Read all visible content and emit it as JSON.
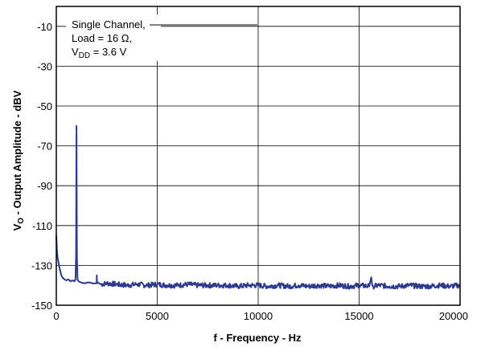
{
  "chart_data": {
    "type": "line",
    "title": "",
    "xlabel": "f - Frequency - Hz",
    "ylabel": {
      "prefix": "V",
      "sub": "O",
      "rest": " - Output Amplitude - dBV"
    },
    "xlim": [
      0,
      20000
    ],
    "ylim": [
      -150,
      0
    ],
    "x_ticks": [
      0,
      5000,
      10000,
      15000,
      20000
    ],
    "y_ticks": [
      -10,
      -30,
      -50,
      -70,
      -90,
      -110,
      -130,
      -150
    ],
    "grid": true,
    "legend": "none",
    "annotation": {
      "line1": "Single Channel,",
      "line2": "Load = 16 Ω,",
      "line3_main": "V",
      "line3_sub": "DD",
      "line3_rest": " = 3.6 V"
    },
    "series": [
      {
        "color": "#2e3a8c",
        "x": [
          0,
          30,
          60,
          100,
          150,
          200,
          250,
          300,
          400,
          500,
          600,
          700,
          800,
          900,
          950,
          980,
          1000,
          1020,
          1050,
          1100,
          1200,
          1400,
          1600,
          1800,
          2000,
          2005,
          2010,
          2050,
          2200,
          2500,
          3000,
          3500,
          4000,
          4500,
          5000,
          5500,
          6000,
          6500,
          7000,
          7500,
          8000,
          8500,
          9000,
          9500,
          10000,
          10500,
          11000,
          11500,
          12000,
          12500,
          13000,
          13500,
          14000,
          14500,
          15000,
          15500,
          15600,
          15650,
          15700,
          16000,
          16500,
          17000,
          17500,
          18000,
          18500,
          19000,
          19500,
          20000
        ],
        "y": [
          -115,
          -122,
          -126,
          -128,
          -131,
          -133,
          -135,
          -136,
          -137,
          -137.5,
          -137,
          -138,
          -137.5,
          -138,
          -137,
          -125,
          -60,
          -125,
          -137,
          -138,
          -138.5,
          -139,
          -138.5,
          -139,
          -139,
          -135,
          -139,
          -138.5,
          -139.5,
          -139,
          -139.5,
          -140,
          -139.5,
          -140,
          -139.5,
          -140,
          -140,
          -139.5,
          -140,
          -140,
          -140,
          -140,
          -140.5,
          -140,
          -140,
          -140.5,
          -140,
          -140.5,
          -140,
          -140.5,
          -140,
          -140.5,
          -140,
          -140.5,
          -140,
          -140.5,
          -136,
          -140,
          -140.5,
          -140,
          -140.5,
          -140.5,
          -140,
          -140.5,
          -140.5,
          -140,
          -140.5,
          -140
        ]
      }
    ]
  }
}
